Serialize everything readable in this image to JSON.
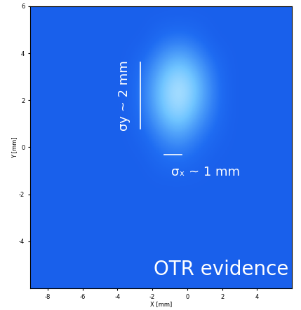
{
  "chart_data": {
    "type": "heatmap",
    "x_label": "X [mm]",
    "y_label": "Y [mm]",
    "x": [
      -8.5,
      -7.5,
      -6.5,
      -5.5,
      -4.5,
      -3.5,
      -2.5,
      -1.5,
      -0.5,
      0.5,
      1.5,
      2.5,
      3.5,
      4.5,
      5.5
    ],
    "y": [
      5.5,
      4.5,
      3.5,
      2.5,
      1.5,
      0.5,
      -0.5,
      -1.5,
      -2.5,
      -3.5,
      -4.5,
      -5.5
    ],
    "values": [
      [
        0.25,
        0.25,
        0.25,
        0.25,
        0.25,
        0.25,
        0.25,
        0.25,
        0.25,
        0.25,
        0.25,
        0.25,
        0.25,
        0.25,
        0.25
      ],
      [
        0.25,
        0.25,
        0.25,
        0.25,
        0.25,
        0.25,
        0.25,
        0.35,
        0.4,
        0.35,
        0.25,
        0.25,
        0.25,
        0.25,
        0.25
      ],
      [
        0.25,
        0.25,
        0.25,
        0.25,
        0.25,
        0.25,
        0.35,
        0.55,
        0.7,
        0.55,
        0.35,
        0.25,
        0.25,
        0.25,
        0.25
      ],
      [
        0.25,
        0.25,
        0.25,
        0.25,
        0.25,
        0.25,
        0.4,
        0.7,
        0.95,
        0.7,
        0.4,
        0.25,
        0.25,
        0.25,
        0.25
      ],
      [
        0.25,
        0.25,
        0.25,
        0.25,
        0.25,
        0.25,
        0.38,
        0.65,
        0.85,
        0.6,
        0.38,
        0.25,
        0.25,
        0.25,
        0.25
      ],
      [
        0.25,
        0.25,
        0.25,
        0.25,
        0.25,
        0.25,
        0.3,
        0.45,
        0.55,
        0.42,
        0.3,
        0.25,
        0.25,
        0.25,
        0.25
      ],
      [
        0.25,
        0.25,
        0.25,
        0.25,
        0.25,
        0.25,
        0.25,
        0.32,
        0.35,
        0.3,
        0.25,
        0.25,
        0.25,
        0.25,
        0.25
      ],
      [
        0.25,
        0.25,
        0.25,
        0.25,
        0.25,
        0.25,
        0.25,
        0.25,
        0.25,
        0.25,
        0.25,
        0.25,
        0.25,
        0.25,
        0.25
      ],
      [
        0.25,
        0.25,
        0.25,
        0.25,
        0.25,
        0.25,
        0.25,
        0.25,
        0.25,
        0.25,
        0.25,
        0.25,
        0.25,
        0.25,
        0.25
      ],
      [
        0.25,
        0.25,
        0.25,
        0.25,
        0.25,
        0.25,
        0.25,
        0.25,
        0.25,
        0.25,
        0.25,
        0.25,
        0.25,
        0.25,
        0.25
      ],
      [
        0.25,
        0.25,
        0.25,
        0.25,
        0.25,
        0.25,
        0.25,
        0.25,
        0.25,
        0.25,
        0.25,
        0.25,
        0.25,
        0.25,
        0.25
      ],
      [
        0.25,
        0.25,
        0.25,
        0.25,
        0.25,
        0.25,
        0.25,
        0.25,
        0.25,
        0.25,
        0.25,
        0.25,
        0.25,
        0.25,
        0.25
      ]
    ],
    "xlim": [
      -9,
      6
    ],
    "ylim": [
      -6,
      6
    ],
    "xticks": [
      -8,
      -6,
      -4,
      -2,
      0,
      2,
      4
    ],
    "yticks": [
      -4,
      -2,
      0,
      2,
      4,
      6
    ],
    "annotations": [
      "σy ~ 2 mm",
      "σₓ ~ 1 mm",
      "OTR evidence"
    ]
  }
}
